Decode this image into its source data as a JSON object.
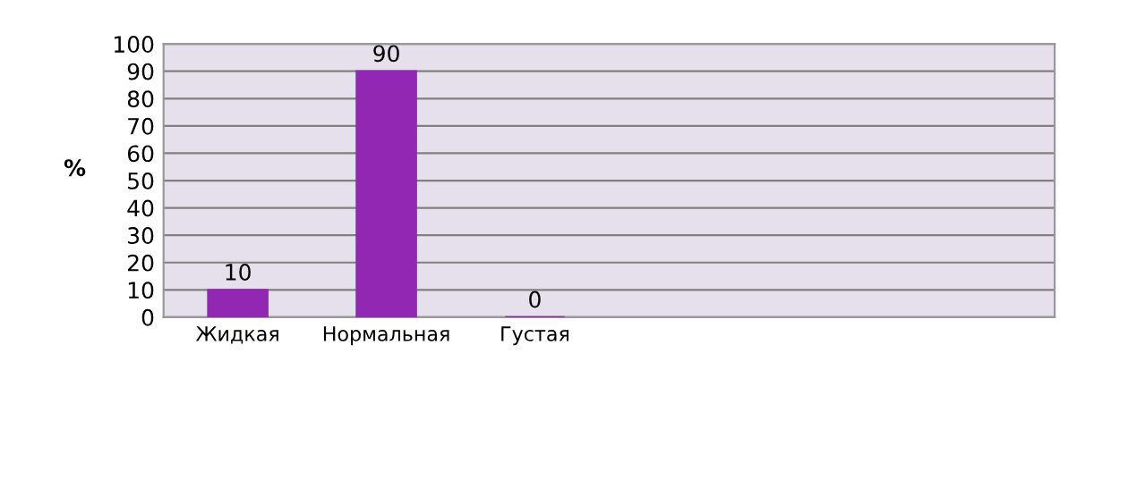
{
  "chart_data": {
    "type": "bar",
    "ylabel": "%",
    "categories": [
      "Жидкая",
      "Нормальная",
      "Густая",
      null,
      null,
      null
    ],
    "values": [
      10,
      90,
      0,
      null,
      null,
      null
    ],
    "color": "#9227b4",
    "ylim": [
      0,
      100
    ],
    "yticks": [
      0,
      10,
      20,
      30,
      40,
      50,
      60,
      70,
      80,
      90,
      100
    ],
    "grid": "y",
    "data_labels": true
  }
}
